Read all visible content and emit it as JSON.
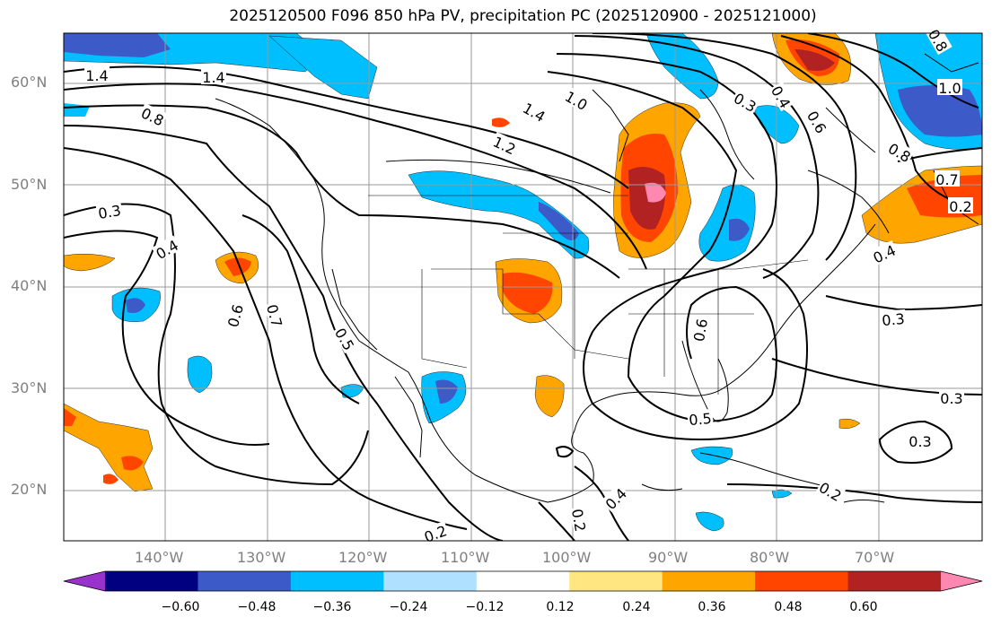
{
  "title": "2025120500 F096 850 hPa PV, precipitation PC (2025120900 - 2025121000)",
  "lat_labels": [
    "60°N",
    "50°N",
    "40°N",
    "30°N",
    "20°N"
  ],
  "lon_labels": [
    "140°W",
    "130°W",
    "120°W",
    "110°W",
    "100°W",
    "90°W",
    "80°W",
    "70°W"
  ],
  "colorbar": {
    "ticks": [
      "−0.60",
      "−0.48",
      "−0.36",
      "−0.24",
      "−0.12",
      "0.12",
      "0.24",
      "0.36",
      "0.48",
      "0.60"
    ],
    "colors": [
      "#9932cc",
      "#000080",
      "#3c5ac8",
      "#00bfff",
      "#b0e0ff",
      "#ffffff",
      "#ffe680",
      "#ffa500",
      "#ff4500",
      "#b22222",
      "#ff88b0"
    ]
  },
  "contour_labels": [
    {
      "text": "1.4"
    },
    {
      "text": "1.4"
    },
    {
      "text": "0.8"
    },
    {
      "text": "0.3"
    },
    {
      "text": "0.4"
    },
    {
      "text": "0.6"
    },
    {
      "text": "0.7"
    },
    {
      "text": "0.5"
    },
    {
      "text": "1.4"
    },
    {
      "text": "1.0"
    },
    {
      "text": "1.2"
    },
    {
      "text": "0.3"
    },
    {
      "text": "0.4"
    },
    {
      "text": "0.6"
    },
    {
      "text": "1.0"
    },
    {
      "text": "0.8"
    },
    {
      "text": "0.7"
    },
    {
      "text": "0.4"
    },
    {
      "text": "0.3"
    },
    {
      "text": "0.6"
    },
    {
      "text": "0.5"
    },
    {
      "text": "0.3"
    },
    {
      "text": "0.3"
    },
    {
      "text": "0.2"
    },
    {
      "text": "0.2"
    },
    {
      "text": "0.2"
    },
    {
      "text": "0.4"
    },
    {
      "text": "0.2"
    },
    {
      "text": "0.8"
    }
  ]
}
